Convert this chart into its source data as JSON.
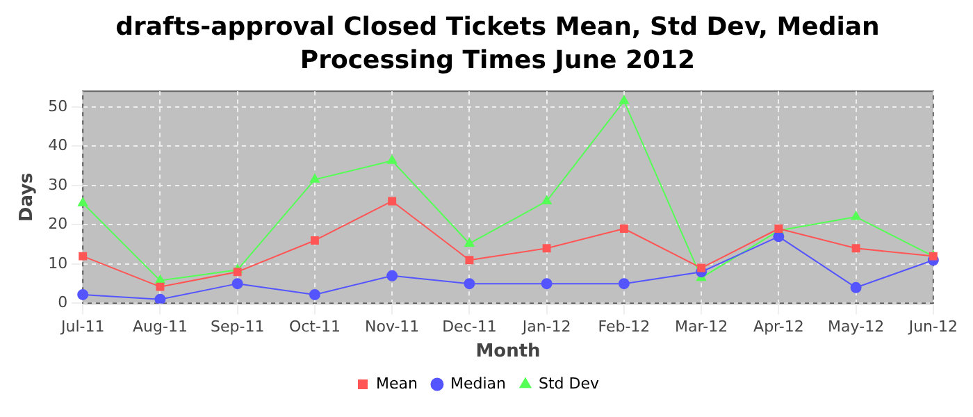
{
  "chart_data": {
    "type": "line",
    "title": "drafts-approval Closed Tickets Mean, Std Dev, Median Processing Times June 2012",
    "xlabel": "Month",
    "ylabel": "Days",
    "categories": [
      "Jul-11",
      "Aug-11",
      "Sep-11",
      "Oct-11",
      "Nov-11",
      "Dec-11",
      "Jan-12",
      "Feb-12",
      "Mar-12",
      "Apr-12",
      "May-12",
      "Jun-12"
    ],
    "series": [
      {
        "name": "Mean",
        "color": "#ff5555",
        "marker": "square",
        "values": [
          12,
          4.2,
          8,
          16,
          26,
          11,
          14,
          19,
          9,
          19,
          14,
          12
        ]
      },
      {
        "name": "Median",
        "color": "#5555ff",
        "marker": "circle",
        "values": [
          2.2,
          1,
          5,
          2.2,
          7,
          5,
          5,
          5,
          8,
          17,
          4,
          11
        ]
      },
      {
        "name": "Std Dev",
        "color": "#55ff55",
        "marker": "triangle",
        "values": [
          25.5,
          5.8,
          8.5,
          31.5,
          36.3,
          15.2,
          26,
          51.5,
          6.5,
          18.5,
          22,
          12
        ]
      }
    ],
    "ylim": [
      0,
      54
    ],
    "yticks": [
      0,
      10,
      20,
      30,
      40,
      50
    ],
    "grid": true,
    "legend": "bottom"
  }
}
